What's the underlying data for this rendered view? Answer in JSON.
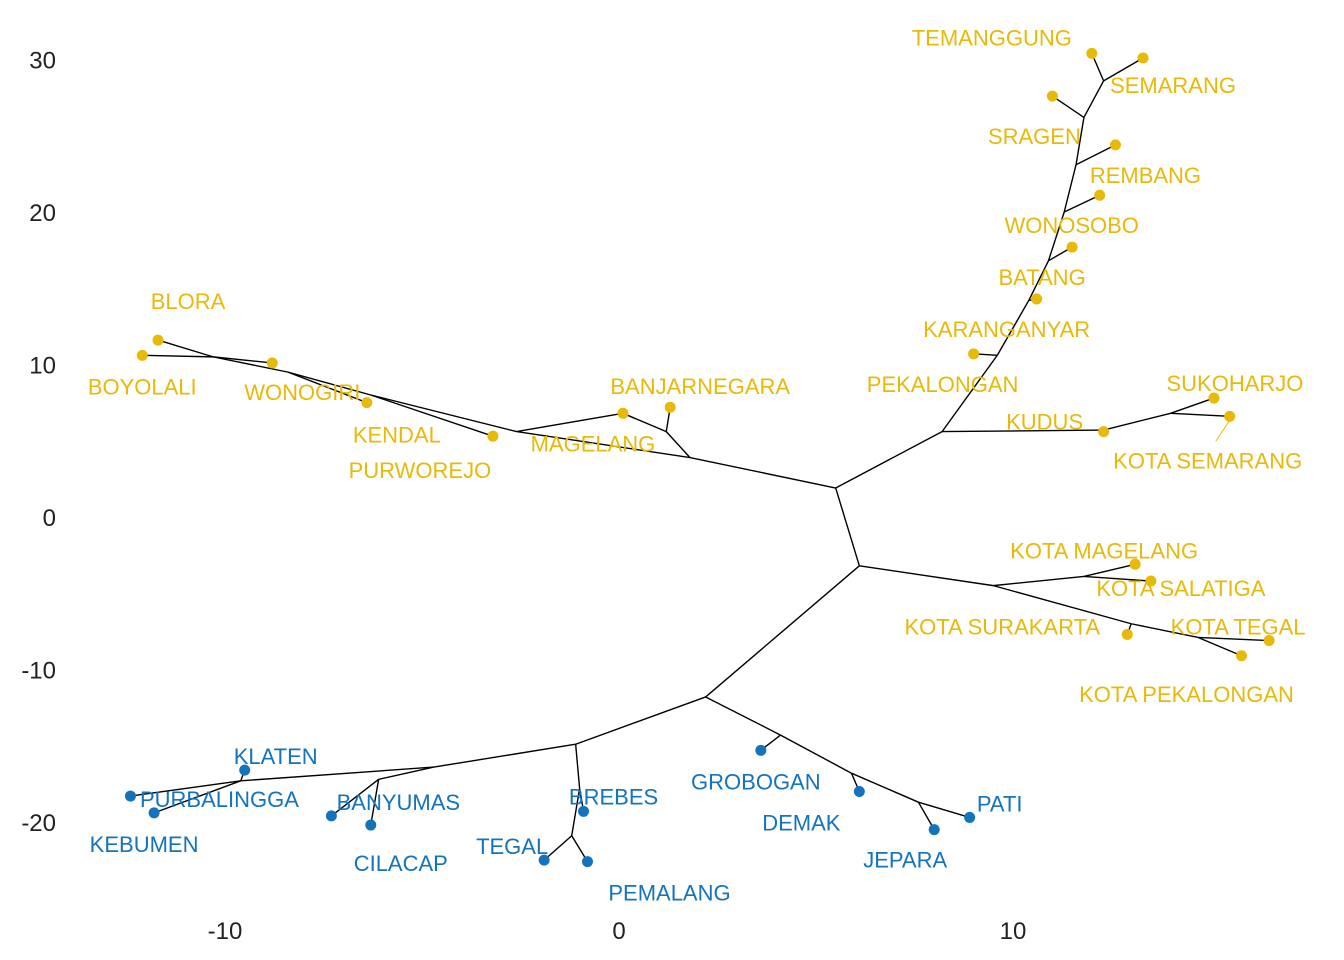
{
  "chart_data": {
    "type": "unrooted-tree",
    "title": "",
    "xlabel": "",
    "ylabel": "",
    "xlim": [
      -15.5,
      17.5
    ],
    "ylim": [
      -26,
      32
    ],
    "x_ticks": [
      -10,
      0,
      10
    ],
    "y_ticks": [
      -20,
      -10,
      0,
      10,
      20,
      30
    ],
    "grid": false,
    "legend": "none",
    "group_colors": {
      "cluster_a": "#E8B908",
      "cluster_b": "#1473BD"
    },
    "internal_nodes": [
      {
        "id": "n1",
        "x": 5.5,
        "y": 1.9
      },
      {
        "id": "n2",
        "x": 6.1,
        "y": -3.2
      },
      {
        "id": "n3",
        "x": 8.2,
        "y": 5.6
      },
      {
        "id": "n4",
        "x": 1.8,
        "y": 3.9
      },
      {
        "id": "n5",
        "x": -2.6,
        "y": 5.6
      },
      {
        "id": "n6",
        "x": -6.3,
        "y": 8.0
      },
      {
        "id": "n7",
        "x": -8.4,
        "y": 9.5
      },
      {
        "id": "n8",
        "x": -10.3,
        "y": 10.5
      },
      {
        "id": "n9",
        "x": 1.2,
        "y": 5.6
      },
      {
        "id": "n10",
        "x": 9.6,
        "y": 10.6
      },
      {
        "id": "n11",
        "x": 10.4,
        "y": 14.2
      },
      {
        "id": "n12",
        "x": 10.9,
        "y": 16.8
      },
      {
        "id": "n13",
        "x": 11.3,
        "y": 20.0
      },
      {
        "id": "n14",
        "x": 11.6,
        "y": 23.1
      },
      {
        "id": "n15",
        "x": 11.8,
        "y": 26.2
      },
      {
        "id": "n16",
        "x": 12.3,
        "y": 28.6
      },
      {
        "id": "n17",
        "x": 12.3,
        "y": 5.7
      },
      {
        "id": "n18",
        "x": 14.0,
        "y": 6.8
      },
      {
        "id": "n19",
        "x": 9.5,
        "y": -4.5
      },
      {
        "id": "n20",
        "x": 11.8,
        "y": -3.9
      },
      {
        "id": "n21",
        "x": 13.0,
        "y": -7.0
      },
      {
        "id": "n22",
        "x": 14.7,
        "y": -7.9
      },
      {
        "id": "n23",
        "x": 2.2,
        "y": -11.8
      },
      {
        "id": "n24",
        "x": -1.1,
        "y": -14.9
      },
      {
        "id": "n25",
        "x": -4.7,
        "y": -16.4
      },
      {
        "id": "n26",
        "x": -6.1,
        "y": -17.2
      },
      {
        "id": "n27",
        "x": -9.6,
        "y": -17.3
      },
      {
        "id": "n28",
        "x": -1.0,
        "y": -17.8
      },
      {
        "id": "n29",
        "x": -1.2,
        "y": -20.9
      },
      {
        "id": "n30",
        "x": 4.1,
        "y": -14.3
      },
      {
        "id": "n31",
        "x": 5.9,
        "y": -16.8
      },
      {
        "id": "n32",
        "x": 7.6,
        "y": -18.7
      }
    ],
    "leaves": [
      {
        "id": "blora",
        "label": "BLORA",
        "x": -11.7,
        "y": 11.6,
        "group": "cluster_a"
      },
      {
        "id": "boyolali",
        "label": "BOYOLALI",
        "x": -12.1,
        "y": 10.6,
        "group": "cluster_a"
      },
      {
        "id": "wonogiri",
        "label": "WONOGIRI",
        "x": -8.8,
        "y": 10.1,
        "group": "cluster_a"
      },
      {
        "id": "kendal",
        "label": "KENDAL",
        "x": -6.4,
        "y": 7.5,
        "group": "cluster_a"
      },
      {
        "id": "purworejo",
        "label": "PURWOREJO",
        "x": -3.2,
        "y": 5.3,
        "group": "cluster_a"
      },
      {
        "id": "magelang",
        "label": "MAGELANG",
        "x": 0.1,
        "y": 6.8,
        "group": "cluster_a"
      },
      {
        "id": "banjarnegara",
        "label": "BANJARNEGARA",
        "x": 1.3,
        "y": 7.2,
        "group": "cluster_a"
      },
      {
        "id": "temanggung",
        "label": "TEMANGGUNG",
        "x": 12.0,
        "y": 30.4,
        "group": "cluster_a"
      },
      {
        "id": "semarang",
        "label": "SEMARANG",
        "x": 13.3,
        "y": 30.1,
        "group": "cluster_a"
      },
      {
        "id": "sragen",
        "label": "SRAGEN",
        "x": 11.0,
        "y": 27.6,
        "group": "cluster_a"
      },
      {
        "id": "rembang",
        "label": "REMBANG",
        "x": 12.6,
        "y": 24.4,
        "group": "cluster_a"
      },
      {
        "id": "wonosobo",
        "label": "WONOSOBO",
        "x": 12.2,
        "y": 21.1,
        "group": "cluster_a"
      },
      {
        "id": "batang",
        "label": "BATANG",
        "x": 11.5,
        "y": 17.7,
        "group": "cluster_a"
      },
      {
        "id": "karanganyar",
        "label": "KARANGANYAR",
        "x": 10.6,
        "y": 14.3,
        "group": "cluster_a"
      },
      {
        "id": "pekalongan",
        "label": "PEKALONGAN",
        "x": 9.0,
        "y": 10.7,
        "group": "cluster_a"
      },
      {
        "id": "kudus",
        "label": "KUDUS",
        "x": 12.3,
        "y": 5.6,
        "group": "cluster_a"
      },
      {
        "id": "sukoharjo",
        "label": "SUKOHARJO",
        "x": 15.1,
        "y": 7.8,
        "group": "cluster_a"
      },
      {
        "id": "kota-semarang",
        "label": "KOTA SEMARANG",
        "x": 15.5,
        "y": 6.6,
        "group": "cluster_a"
      },
      {
        "id": "kota-magelang",
        "label": "KOTA MAGELANG",
        "x": 13.1,
        "y": -3.1,
        "group": "cluster_a"
      },
      {
        "id": "kota-salatiga",
        "label": "KOTA SALATIGA",
        "x": 13.5,
        "y": -4.2,
        "group": "cluster_a"
      },
      {
        "id": "kota-surakarta",
        "label": "KOTA SURAKARTA",
        "x": 12.9,
        "y": -7.7,
        "group": "cluster_a"
      },
      {
        "id": "kota-tegal",
        "label": "KOTA TEGAL",
        "x": 16.5,
        "y": -8.1,
        "group": "cluster_a"
      },
      {
        "id": "kota-pekalongan",
        "label": "KOTA PEKALONGAN",
        "x": 15.8,
        "y": -9.1,
        "group": "cluster_b_placeholder"
      },
      {
        "id": "klaten",
        "label": "KLATEN",
        "x": -9.5,
        "y": -16.6,
        "group": "cluster_b"
      },
      {
        "id": "purbalingga",
        "label": "PURBALINGGA",
        "x": -12.4,
        "y": -18.3,
        "group": "cluster_b"
      },
      {
        "id": "kebumen",
        "label": "KEBUMEN",
        "x": -11.8,
        "y": -19.4,
        "group": "cluster_b"
      },
      {
        "id": "banyumas",
        "label": "BANYUMAS",
        "x": -7.3,
        "y": -19.6,
        "group": "cluster_b"
      },
      {
        "id": "cilacap",
        "label": "CILACAP",
        "x": -6.3,
        "y": -20.2,
        "group": "cluster_b"
      },
      {
        "id": "brebes",
        "label": "BREBES",
        "x": -0.9,
        "y": -19.3,
        "group": "cluster_b"
      },
      {
        "id": "tegal",
        "label": "TEGAL",
        "x": -1.9,
        "y": -22.5,
        "group": "cluster_b"
      },
      {
        "id": "pemalang",
        "label": "PEMALANG",
        "x": -0.8,
        "y": -22.6,
        "group": "cluster_b"
      },
      {
        "id": "grobogan",
        "label": "GROBOGAN",
        "x": 3.6,
        "y": -15.3,
        "group": "cluster_b"
      },
      {
        "id": "demak",
        "label": "DEMAK",
        "x": 6.1,
        "y": -18.0,
        "group": "cluster_b"
      },
      {
        "id": "jepara",
        "label": "JEPARA",
        "x": 8.0,
        "y": -20.5,
        "group": "cluster_b"
      },
      {
        "id": "pati",
        "label": "PATI",
        "x": 8.9,
        "y": -19.7,
        "group": "cluster_b"
      }
    ],
    "edges": [
      [
        "n1",
        "n2"
      ],
      [
        "n1",
        "n3"
      ],
      [
        "n1",
        "n4"
      ],
      [
        "n4",
        "n5"
      ],
      [
        "n4",
        "n9"
      ],
      [
        "n5",
        "n6"
      ],
      [
        "n5",
        "magelang"
      ],
      [
        "n6",
        "n7"
      ],
      [
        "n6",
        "purworejo"
      ],
      [
        "n7",
        "n8"
      ],
      [
        "n7",
        "kendal"
      ],
      [
        "n8",
        "wonogiri"
      ],
      [
        "n8",
        "blora"
      ],
      [
        "n8",
        "boyolali"
      ],
      [
        "n9",
        "magelang"
      ],
      [
        "n9",
        "banjarnegara"
      ],
      [
        "n3",
        "n10"
      ],
      [
        "n3",
        "n17"
      ],
      [
        "n10",
        "pekalongan"
      ],
      [
        "n10",
        "n11"
      ],
      [
        "n11",
        "karanganyar"
      ],
      [
        "n11",
        "n12"
      ],
      [
        "n12",
        "batang"
      ],
      [
        "n12",
        "n13"
      ],
      [
        "n13",
        "wonosobo"
      ],
      [
        "n13",
        "n14"
      ],
      [
        "n14",
        "rembang"
      ],
      [
        "n14",
        "n15"
      ],
      [
        "n15",
        "sragen"
      ],
      [
        "n15",
        "n16"
      ],
      [
        "n16",
        "temanggung"
      ],
      [
        "n16",
        "semarang"
      ],
      [
        "n17",
        "kudus"
      ],
      [
        "n17",
        "n18"
      ],
      [
        "n18",
        "sukoharjo"
      ],
      [
        "n18",
        "kota-semarang"
      ],
      [
        "n2",
        "n19"
      ],
      [
        "n2",
        "n23"
      ],
      [
        "n19",
        "n20"
      ],
      [
        "n19",
        "n21"
      ],
      [
        "n20",
        "kota-magelang"
      ],
      [
        "n20",
        "kota-salatiga"
      ],
      [
        "n21",
        "kota-surakarta"
      ],
      [
        "n21",
        "n22"
      ],
      [
        "n22",
        "kota-tegal"
      ],
      [
        "n22",
        "kota-pekalongan"
      ],
      [
        "n23",
        "n24"
      ],
      [
        "n23",
        "n30"
      ],
      [
        "n24",
        "n25"
      ],
      [
        "n24",
        "n28"
      ],
      [
        "n25",
        "n26"
      ],
      [
        "n25",
        "n27"
      ],
      [
        "n26",
        "banyumas"
      ],
      [
        "n26",
        "cilacap"
      ],
      [
        "n27",
        "klaten"
      ],
      [
        "n27",
        "purbalingga"
      ],
      [
        "n27",
        "kebumen"
      ],
      [
        "n28",
        "brebes"
      ],
      [
        "n28",
        "n29"
      ],
      [
        "n29",
        "tegal"
      ],
      [
        "n29",
        "pemalang"
      ],
      [
        "n30",
        "grobogan"
      ],
      [
        "n30",
        "n31"
      ],
      [
        "n31",
        "demak"
      ],
      [
        "n31",
        "n32"
      ],
      [
        "n32",
        "jepara"
      ],
      [
        "n32",
        "pati"
      ]
    ]
  }
}
